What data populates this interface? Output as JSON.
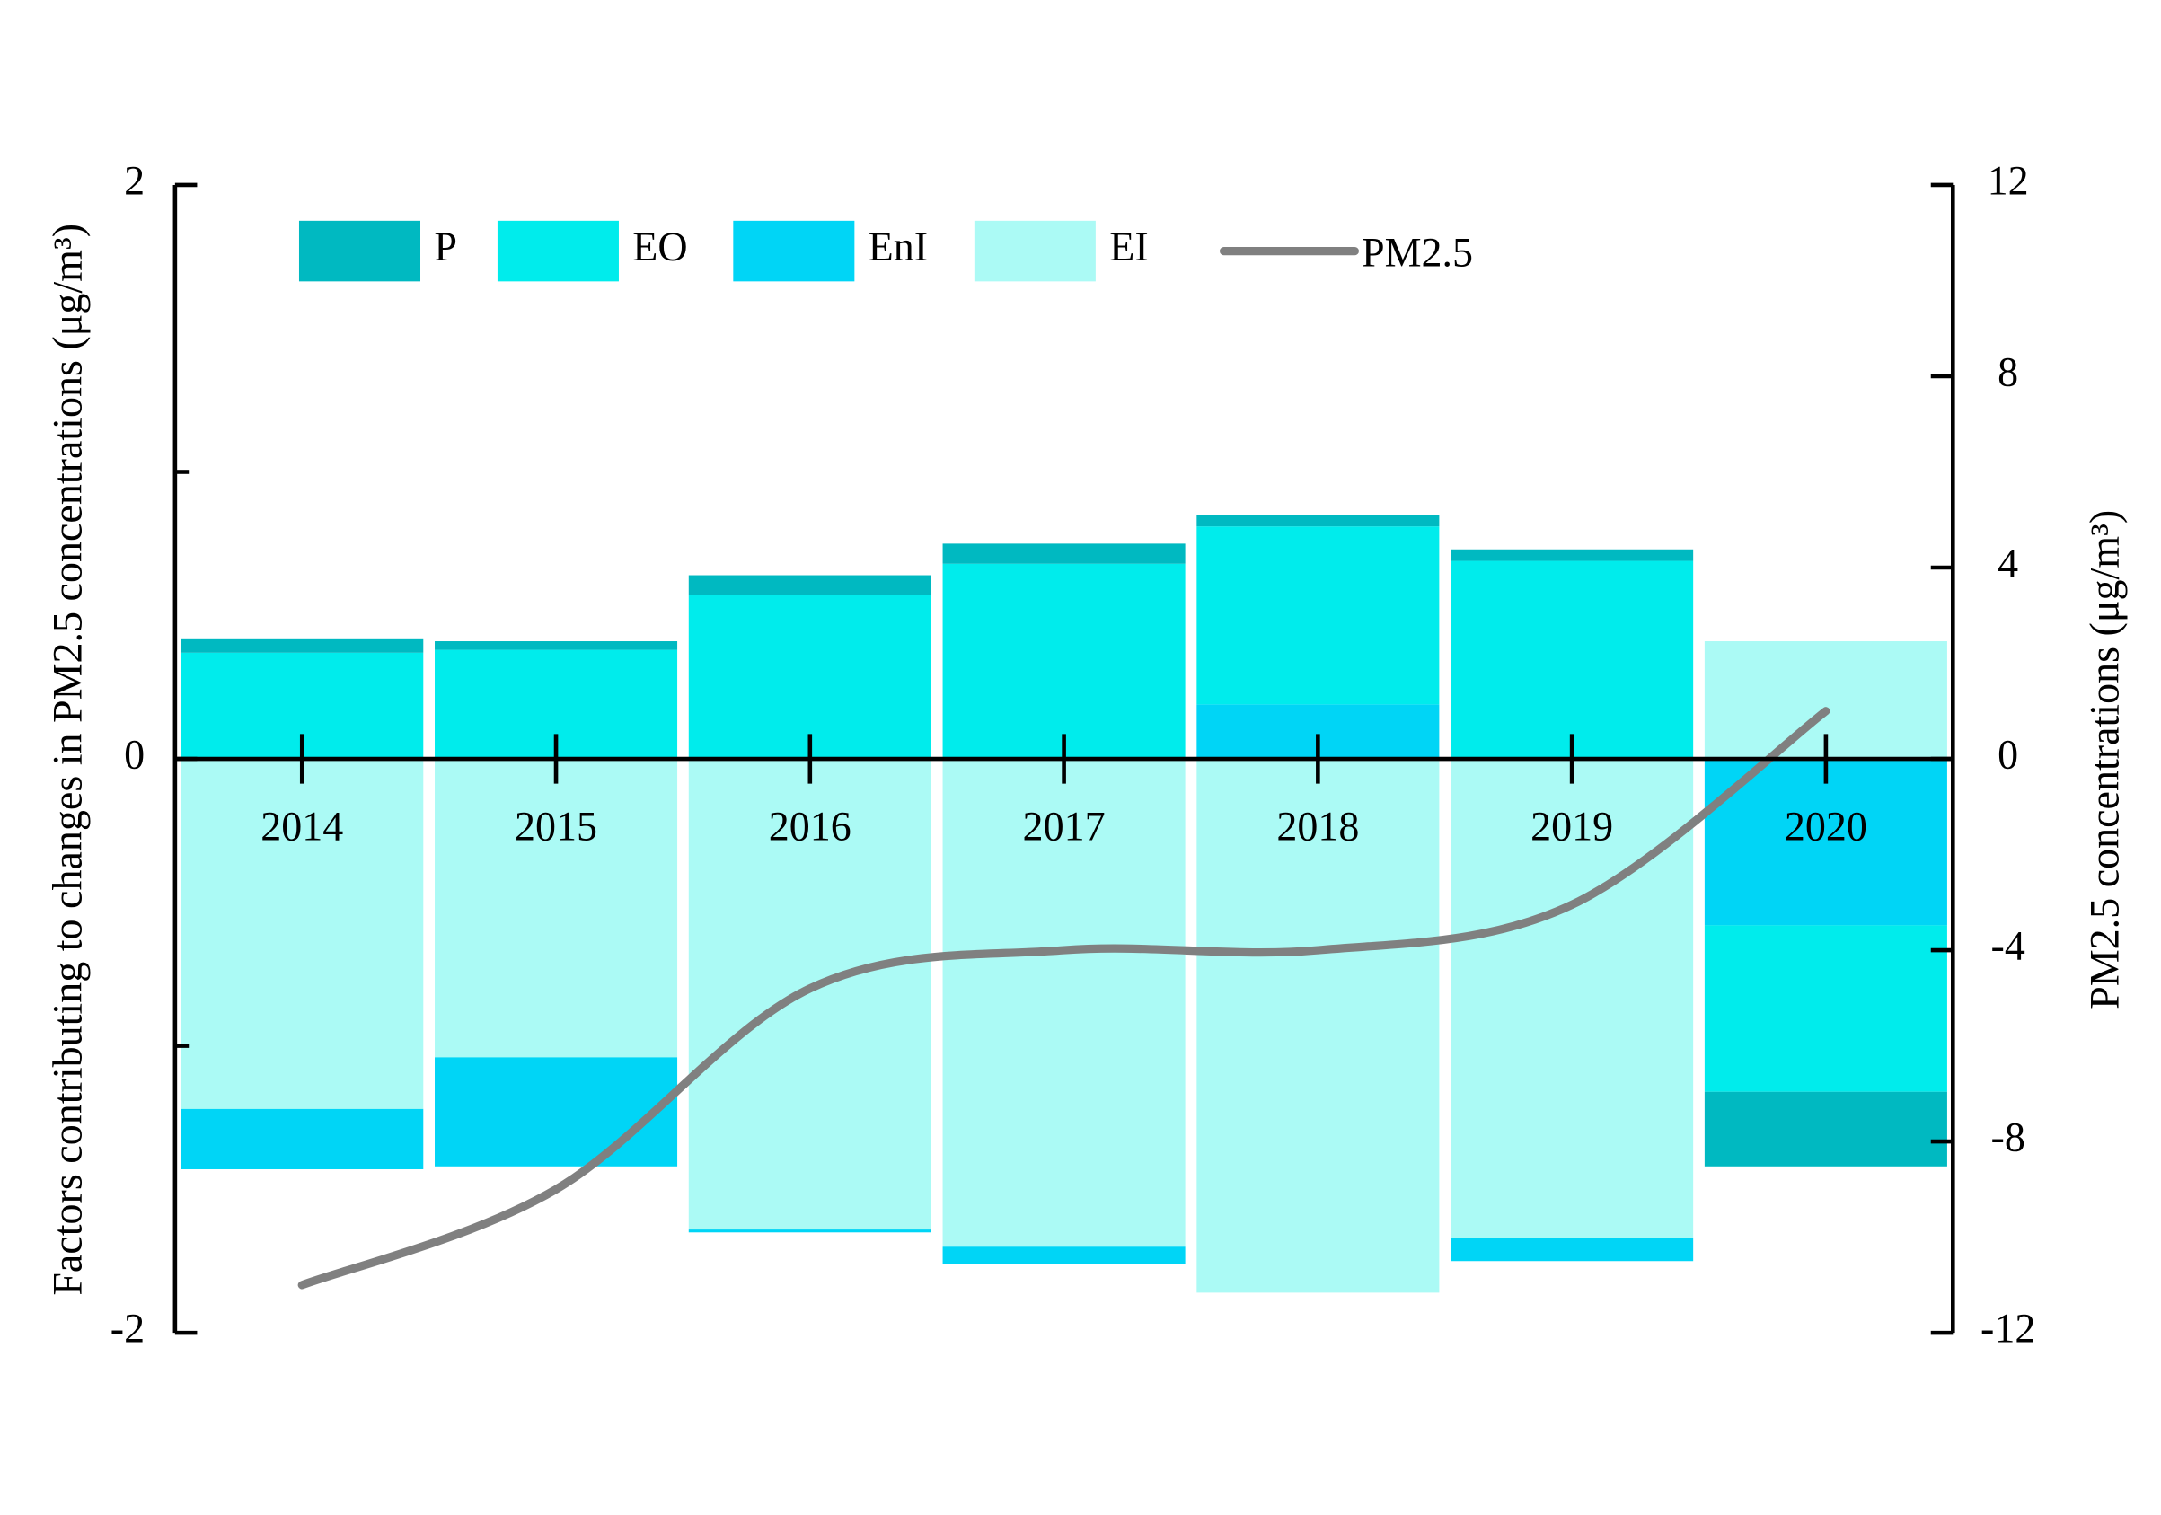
{
  "chart_data": {
    "type": "bar",
    "stacked": true,
    "y_title": "Factors contributing to changes in PM2.5 concentrations (μg/m³)",
    "y2_title": "PM2.5 concentrations (μg/m³)",
    "categories": [
      "2014",
      "2015",
      "2016",
      "2017",
      "2018",
      "2019",
      "2020"
    ],
    "ylim": [
      -2,
      2
    ],
    "yticks": [
      -2,
      0,
      2
    ],
    "y_minor_ticks": [
      -1,
      1
    ],
    "y2lim": [
      -12,
      12
    ],
    "y2ticks": [
      -12,
      -8,
      -4,
      0,
      4,
      8,
      12
    ],
    "legend_position": "top",
    "series": [
      {
        "name": "P",
        "color": "#00b9c1",
        "values": [
          0.05,
          0.03,
          0.07,
          0.07,
          0.04,
          0.04,
          -0.26
        ]
      },
      {
        "name": "EO",
        "color": "#00ecec",
        "values": [
          0.37,
          0.38,
          0.57,
          0.68,
          0.62,
          0.69,
          -0.58
        ]
      },
      {
        "name": "EnI",
        "color": "#00d5f6",
        "values": [
          -0.21,
          -0.38,
          -0.01,
          -0.06,
          0.19,
          -0.08,
          -0.58
        ]
      },
      {
        "name": "EI",
        "color": "#abfaf5",
        "values": [
          -1.22,
          -1.04,
          -1.64,
          -1.7,
          -1.86,
          -1.67,
          0.41
        ]
      },
      {
        "name": "PM2.5",
        "color": "#808080",
        "type": "line",
        "axis": "y2",
        "values": [
          -11.0,
          -9.0,
          -4.8,
          -4.0,
          -4.0,
          -3.05,
          1.0
        ]
      }
    ]
  }
}
